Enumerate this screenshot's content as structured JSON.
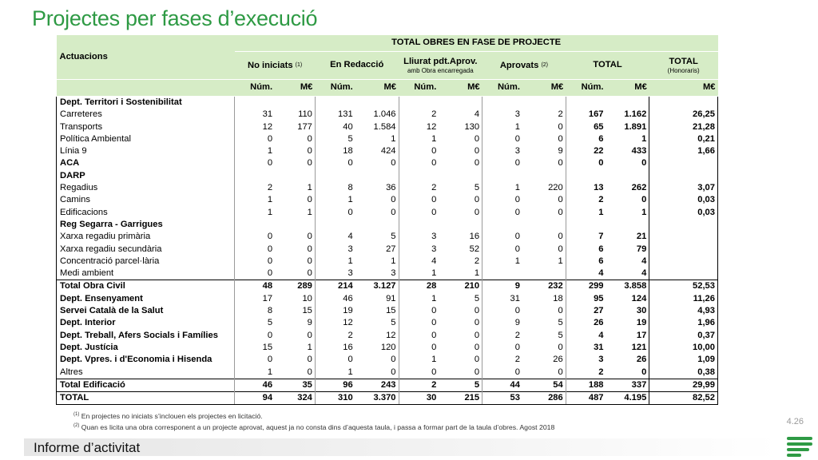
{
  "title": "Projectes per fases d’execució",
  "header": {
    "actuacions": "Actuacions",
    "group_title": "TOTAL OBRES EN FASE DE PROJECTE",
    "col_no_iniciats": "No iniciats",
    "col_no_iniciats_sup": "(1)",
    "col_en_redaccio": "En Redacció",
    "col_lliurat": "Lliurat pdt.Aprov.",
    "col_lliurat_sub": "amb Obra encarregada",
    "col_aprovats": "Aprovats",
    "col_aprovats_sup": "(2)",
    "col_total": "TOTAL",
    "col_total_hon": "TOTAL",
    "col_total_hon_sub": "(Honoraris)",
    "num": "Núm.",
    "meur": "M€"
  },
  "rows": [
    {
      "label": "Dept. Territori i Sostenibilitat",
      "type": "section",
      "v": [
        "",
        "",
        "",
        "",
        "",
        "",
        "",
        "",
        "",
        "",
        ""
      ]
    },
    {
      "label": "Carreteres",
      "type": "item",
      "v": [
        "31",
        "110",
        "131",
        "1.046",
        "2",
        "4",
        "3",
        "2",
        "167",
        "1.162",
        "26,25"
      ]
    },
    {
      "label": "Transports",
      "type": "item",
      "v": [
        "12",
        "177",
        "40",
        "1.584",
        "12",
        "130",
        "1",
        "0",
        "65",
        "1.891",
        "21,28"
      ]
    },
    {
      "label": "Política Ambiental",
      "type": "item",
      "v": [
        "0",
        "0",
        "5",
        "1",
        "1",
        "0",
        "0",
        "0",
        "6",
        "1",
        "0,21"
      ]
    },
    {
      "label": "Línia 9",
      "type": "item",
      "v": [
        "1",
        "0",
        "18",
        "424",
        "0",
        "0",
        "3",
        "9",
        "22",
        "433",
        "1,66"
      ]
    },
    {
      "label": "ACA",
      "type": "section",
      "v": [
        "0",
        "0",
        "0",
        "0",
        "0",
        "0",
        "0",
        "0",
        "0",
        "0",
        ""
      ]
    },
    {
      "label": "DARP",
      "type": "section",
      "v": [
        "",
        "",
        "",
        "",
        "",
        "",
        "",
        "",
        "",
        "",
        ""
      ]
    },
    {
      "label": "Regadius",
      "type": "item",
      "v": [
        "2",
        "1",
        "8",
        "36",
        "2",
        "5",
        "1",
        "220",
        "13",
        "262",
        "3,07"
      ]
    },
    {
      "label": "Camins",
      "type": "item",
      "v": [
        "1",
        "0",
        "1",
        "0",
        "0",
        "0",
        "0",
        "0",
        "2",
        "0",
        "0,03"
      ]
    },
    {
      "label": "Edificacions",
      "type": "item",
      "v": [
        "1",
        "1",
        "0",
        "0",
        "0",
        "0",
        "0",
        "0",
        "1",
        "1",
        "0,03"
      ]
    },
    {
      "label": "Reg Segarra - Garrigues",
      "type": "section",
      "v": [
        "",
        "",
        "",
        "",
        "",
        "",
        "",
        "",
        "",
        "",
        ""
      ]
    },
    {
      "label": "Xarxa regadiu primària",
      "type": "item",
      "v": [
        "0",
        "0",
        "4",
        "5",
        "3",
        "16",
        "0",
        "0",
        "7",
        "21",
        ""
      ]
    },
    {
      "label": "Xarxa regadiu secundària",
      "type": "item",
      "v": [
        "0",
        "0",
        "3",
        "27",
        "3",
        "52",
        "0",
        "0",
        "6",
        "79",
        ""
      ]
    },
    {
      "label": "Concentració parcel·lària",
      "type": "item",
      "v": [
        "0",
        "0",
        "1",
        "1",
        "4",
        "2",
        "1",
        "1",
        "6",
        "4",
        ""
      ]
    },
    {
      "label": "Medi ambient",
      "type": "item",
      "v": [
        "0",
        "0",
        "3",
        "3",
        "1",
        "1",
        "",
        "",
        "4",
        "4",
        ""
      ]
    },
    {
      "label": "Total Obra Civil",
      "type": "total",
      "v": [
        "48",
        "289",
        "214",
        "3.127",
        "28",
        "210",
        "9",
        "232",
        "299",
        "3.858",
        "52,53"
      ]
    },
    {
      "label": "Dept. Ensenyament",
      "type": "section",
      "v": [
        "17",
        "10",
        "46",
        "91",
        "1",
        "5",
        "31",
        "18",
        "95",
        "124",
        "11,26"
      ]
    },
    {
      "label": "Servei Català de la Salut",
      "type": "section",
      "v": [
        "8",
        "15",
        "19",
        "15",
        "0",
        "0",
        "0",
        "0",
        "27",
        "30",
        "4,93"
      ]
    },
    {
      "label": "Dept. Interior",
      "type": "section",
      "v": [
        "5",
        "9",
        "12",
        "5",
        "0",
        "0",
        "9",
        "5",
        "26",
        "19",
        "1,96"
      ]
    },
    {
      "label": "Dept. Treball, Afers Socials i Famílies",
      "type": "section",
      "v": [
        "0",
        "0",
        "2",
        "12",
        "0",
        "0",
        "2",
        "5",
        "4",
        "17",
        "0,37"
      ]
    },
    {
      "label": "Dept. Justícia",
      "type": "section",
      "v": [
        "15",
        "1",
        "16",
        "120",
        "0",
        "0",
        "0",
        "0",
        "31",
        "121",
        "10,00"
      ]
    },
    {
      "label": "Dept. Vpres. i d'Economia i Hisenda",
      "type": "section",
      "v": [
        "0",
        "0",
        "0",
        "0",
        "1",
        "0",
        "2",
        "26",
        "3",
        "26",
        "1,09"
      ]
    },
    {
      "label": "Altres",
      "type": "item",
      "v": [
        "1",
        "0",
        "1",
        "0",
        "0",
        "0",
        "0",
        "0",
        "2",
        "0",
        "0,38"
      ]
    },
    {
      "label": "Total Edificació",
      "type": "total",
      "v": [
        "46",
        "35",
        "96",
        "243",
        "2",
        "5",
        "44",
        "54",
        "188",
        "337",
        "29,99"
      ]
    },
    {
      "label": "TOTAL",
      "type": "total",
      "v": [
        "94",
        "324",
        "310",
        "3.370",
        "30",
        "215",
        "53",
        "286",
        "487",
        "4.195",
        "82,52"
      ]
    }
  ],
  "notes": {
    "n1_sup": "(1)",
    "n1": "En projectes no iniciats s’inclouen els projectes en licitació.",
    "n2_sup": "(2)",
    "n2": "Quan es licita una obra corresponent a un projecte aprovat, aquest ja no consta dins d’aquesta taula, i passa a formar part de la taula d’obres. Agost 2018"
  },
  "page_number": "4.26",
  "footer_text": "Informe d’activitat",
  "colors": {
    "brand_green": "#2e9a44",
    "header_fill": "#d6ecc6"
  }
}
